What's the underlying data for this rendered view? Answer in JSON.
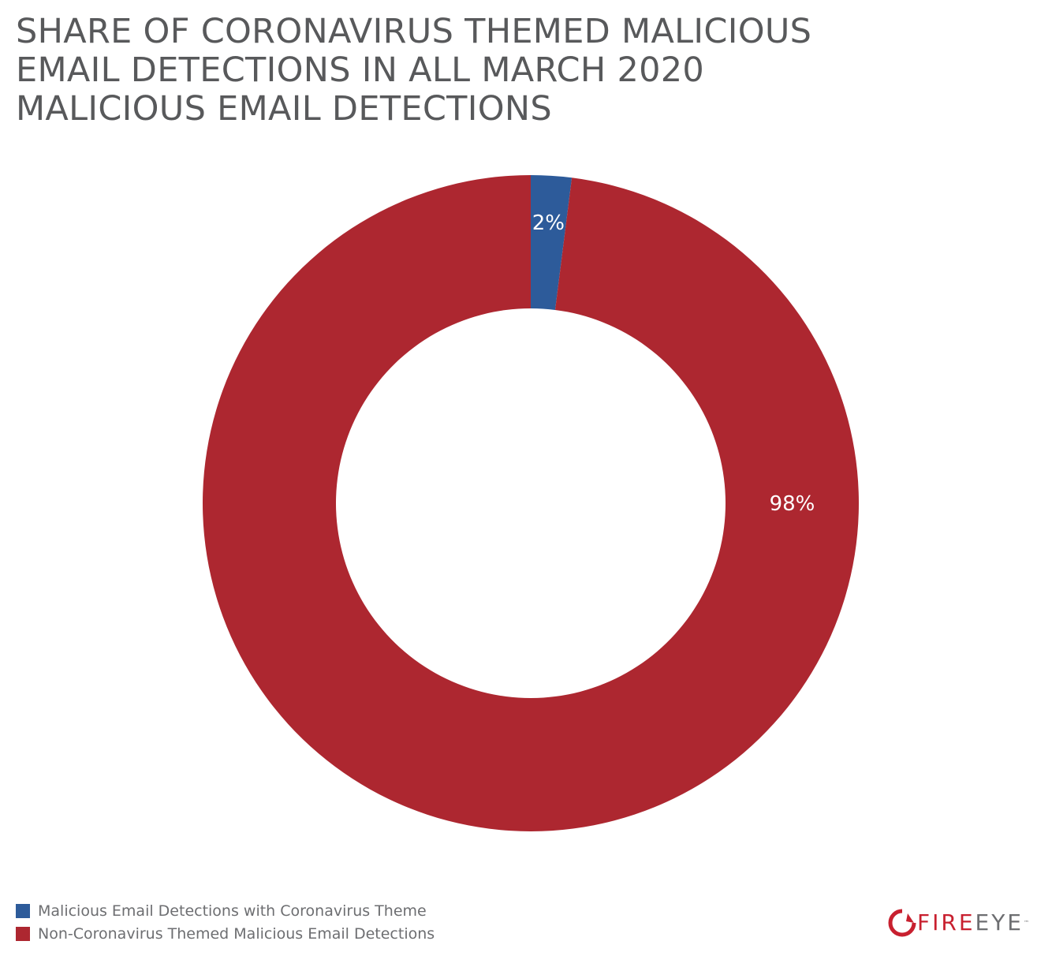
{
  "title_lines": [
    "SHARE OF CORONAVIRUS THEMED MALICIOUS",
    "EMAIL DETECTIONS IN ALL MARCH 2020",
    "MALICIOUS EMAIL DETECTIONS"
  ],
  "chart_data": {
    "type": "pie",
    "style": "donut",
    "title": "SHARE OF CORONAVIRUS THEMED MALICIOUS EMAIL DETECTIONS IN ALL MARCH 2020 MALICIOUS EMAIL DETECTIONS",
    "slices": [
      {
        "label": "Malicious Email Detections with Coronavirus Theme",
        "value": 2,
        "display": "2%",
        "color": "#2d5b9a"
      },
      {
        "label": "Non-Coronavirus Themed Malicious Email Detections",
        "value": 98,
        "display": "98%",
        "color": "#ad2730"
      }
    ],
    "legend_placement": "bottom-left"
  },
  "logo": {
    "fire": "FIRE",
    "eye": "EYE",
    "tm": "™",
    "icon": "fireeye-logo-icon"
  }
}
